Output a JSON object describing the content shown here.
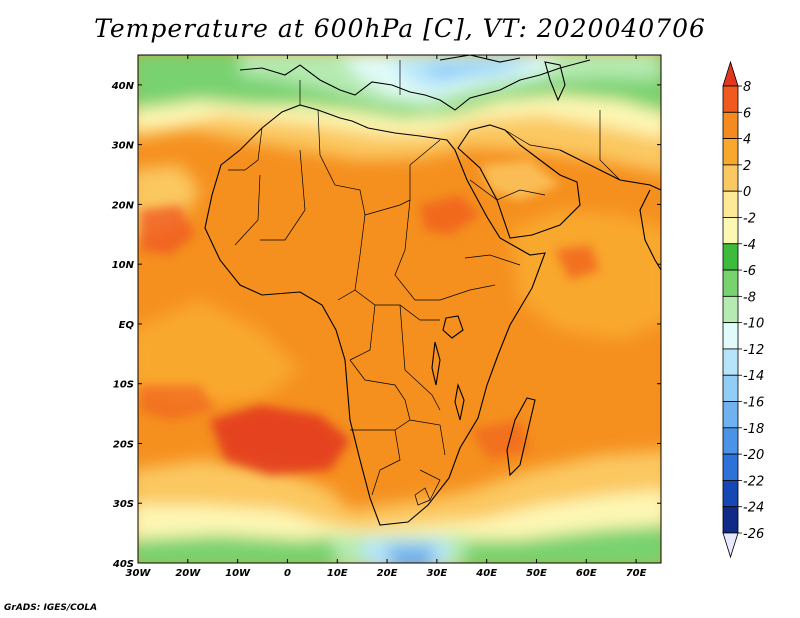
{
  "title": "Temperature at 600hPa [C], VT: 2020040706",
  "credit": "GrADS: IGES/COLA",
  "map": {
    "lon_range": [
      -30,
      75
    ],
    "lat_range": [
      -40,
      45
    ],
    "lon_ticks": [
      {
        "value": -30,
        "label": "30W"
      },
      {
        "value": -20,
        "label": "20W"
      },
      {
        "value": -10,
        "label": "10W"
      },
      {
        "value": 0,
        "label": "0"
      },
      {
        "value": 10,
        "label": "10E"
      },
      {
        "value": 20,
        "label": "20E"
      },
      {
        "value": 30,
        "label": "30E"
      },
      {
        "value": 40,
        "label": "40E"
      },
      {
        "value": 50,
        "label": "50E"
      },
      {
        "value": 60,
        "label": "60E"
      },
      {
        "value": 70,
        "label": "70E"
      }
    ],
    "lat_ticks": [
      {
        "value": 40,
        "label": "40N"
      },
      {
        "value": 30,
        "label": "30N"
      },
      {
        "value": 20,
        "label": "20N"
      },
      {
        "value": 10,
        "label": "10N"
      },
      {
        "value": 0,
        "label": "EQ"
      },
      {
        "value": -10,
        "label": "10S"
      },
      {
        "value": -20,
        "label": "20S"
      },
      {
        "value": -30,
        "label": "30S"
      },
      {
        "value": -40,
        "label": "40S"
      }
    ]
  },
  "colorbar": {
    "levels": [
      8,
      6,
      4,
      2,
      0,
      -2,
      -4,
      -6,
      -8,
      -10,
      -12,
      -14,
      -16,
      -18,
      -20,
      -22,
      -24,
      -26
    ],
    "labels": [
      "8",
      "6",
      "4",
      "2",
      "0",
      "-2",
      "-4",
      "-6",
      "-8",
      "-10",
      "-12",
      "-14",
      "-16",
      "-18",
      "-20",
      "-22",
      "-24",
      "-26"
    ],
    "colors": [
      "#e2361e",
      "#f05a1e",
      "#f58a1e",
      "#f9a82e",
      "#fbc861",
      "#fde996",
      "#fdf7b4",
      "#3dbb3d",
      "#78d26f",
      "#b5eab0",
      "#e1fbf8",
      "#b6e5fb",
      "#91cdf7",
      "#6fb2ef",
      "#4a93e6",
      "#2c72d9",
      "#1548b4",
      "#0f2a87",
      "#e8e8ff"
    ]
  }
}
